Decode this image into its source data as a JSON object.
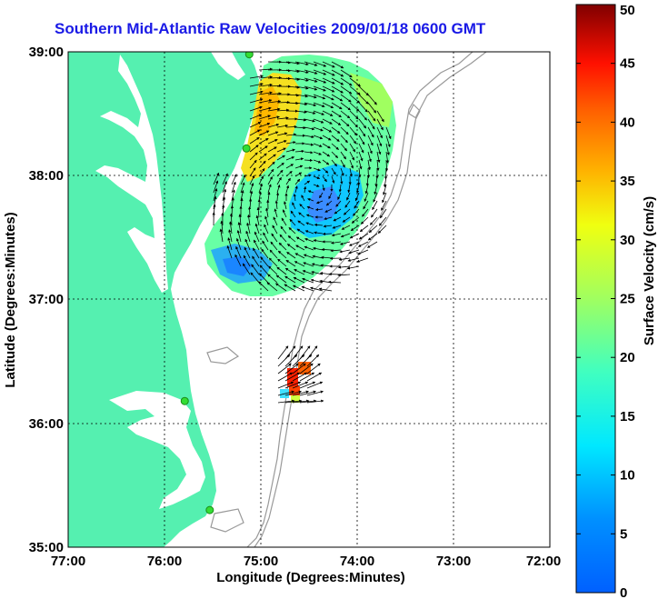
{
  "title": "Southern Mid-Atlantic Raw Velocities 2009/01/18 0600 GMT",
  "x_axis": {
    "label": "Longitude (Degrees:Minutes)",
    "ticks": [
      "77:00",
      "76:00",
      "75:00",
      "74:00",
      "73:00",
      "72:00"
    ],
    "range": [
      -77,
      -72
    ]
  },
  "y_axis": {
    "label": "Latitude (Degrees:Minutes)",
    "ticks": [
      "39:00",
      "38:00",
      "37:00",
      "36:00",
      "35:00"
    ],
    "range": [
      35,
      39
    ]
  },
  "colorbar": {
    "label": "Surface Velocity (cm/s)",
    "ticks": [
      "50",
      "45",
      "40",
      "35",
      "30",
      "25",
      "20",
      "15",
      "10",
      "5",
      "0"
    ],
    "range": [
      0,
      50
    ],
    "colormap": "jet"
  },
  "colors": {
    "land": "#55f0b0",
    "water": "#ffffff",
    "bathymetry": "#999999",
    "grid": "#000000",
    "station": "#33dd33",
    "title": "#1a1ae6",
    "arrows": "#000000"
  },
  "stations": [
    {
      "lon": -75.12,
      "lat": 38.98
    },
    {
      "lon": -75.15,
      "lat": 38.22
    },
    {
      "lon": -75.79,
      "lat": 36.18
    },
    {
      "lon": -75.53,
      "lat": 35.3
    }
  ]
}
